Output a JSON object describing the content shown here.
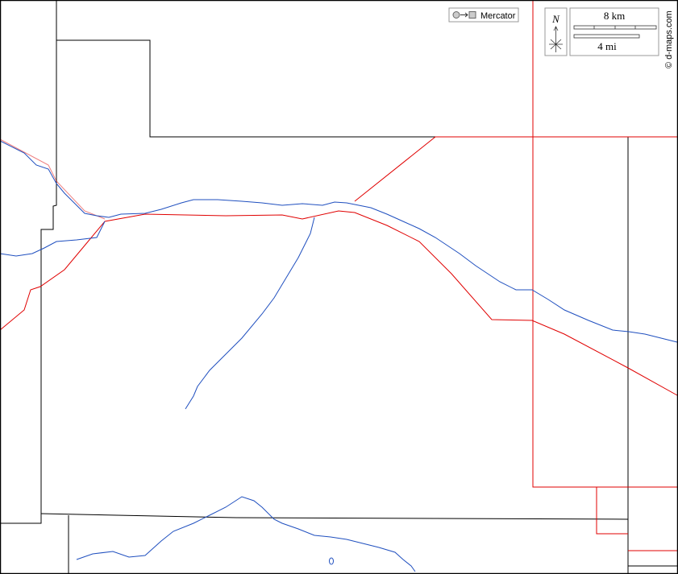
{
  "projection_label": "Mercator",
  "scale": {
    "km": "8 km",
    "mi": "4 mi"
  },
  "north": "N",
  "credit": "© d-maps.com"
}
